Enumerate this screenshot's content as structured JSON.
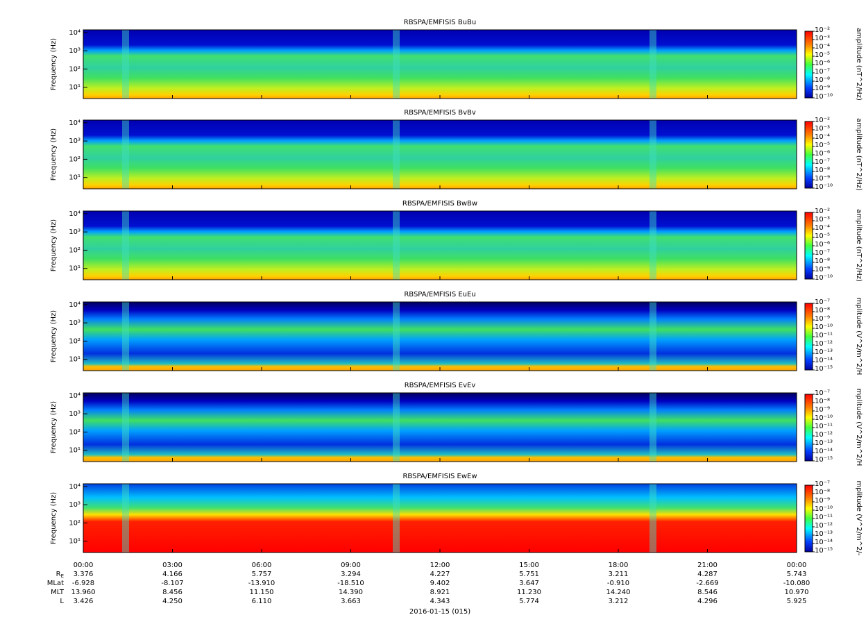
{
  "chart_data": [
    {
      "type": "spectrogram",
      "title": "RBSPA/EMFISIS  BuBu",
      "ylabel": "Frequency (Hz)",
      "ylog": true,
      "ylim": [
        2.4,
        14000
      ],
      "yticks": [
        {
          "value": 10,
          "label": "10¹"
        },
        {
          "value": 100,
          "label": "10²"
        },
        {
          "value": 1000,
          "label": "10³"
        },
        {
          "value": 10000,
          "label": "10⁴"
        }
      ],
      "clabel": "amplitude (nT^2/Hz)",
      "clog": true,
      "clim": [
        1e-10,
        0.01
      ],
      "cticks": [
        {
          "value": 0.01,
          "label": "10⁻²"
        },
        {
          "value": 0.001,
          "label": "10⁻³"
        },
        {
          "value": 0.0001,
          "label": "10⁻⁴"
        },
        {
          "value": 1e-05,
          "label": "10⁻⁵"
        },
        {
          "value": 1e-06,
          "label": "10⁻⁶"
        },
        {
          "value": 1e-07,
          "label": "10⁻⁷"
        },
        {
          "value": 1e-08,
          "label": "10⁻⁸"
        },
        {
          "value": 1e-09,
          "label": "10⁻⁹"
        },
        {
          "value": 1e-10,
          "label": "10⁻¹⁰"
        }
      ]
    },
    {
      "type": "spectrogram",
      "title": "RBSPA/EMFISIS  BvBv",
      "ylabel": "Frequency (Hz)",
      "ylog": true,
      "ylim": [
        2.4,
        14000
      ],
      "yticks": [
        {
          "value": 10,
          "label": "10¹"
        },
        {
          "value": 100,
          "label": "10²"
        },
        {
          "value": 1000,
          "label": "10³"
        },
        {
          "value": 10000,
          "label": "10⁴"
        }
      ],
      "clabel": "amplitude (nT^2/Hz)",
      "clog": true,
      "clim": [
        1e-10,
        0.01
      ],
      "cticks": [
        {
          "value": 0.01,
          "label": "10⁻²"
        },
        {
          "value": 0.001,
          "label": "10⁻³"
        },
        {
          "value": 0.0001,
          "label": "10⁻⁴"
        },
        {
          "value": 1e-05,
          "label": "10⁻⁵"
        },
        {
          "value": 1e-06,
          "label": "10⁻⁶"
        },
        {
          "value": 1e-07,
          "label": "10⁻⁷"
        },
        {
          "value": 1e-08,
          "label": "10⁻⁸"
        },
        {
          "value": 1e-09,
          "label": "10⁻⁹"
        },
        {
          "value": 1e-10,
          "label": "10⁻¹⁰"
        }
      ]
    },
    {
      "type": "spectrogram",
      "title": "RBSPA/EMFISIS  BwBw",
      "ylabel": "Frequency (Hz)",
      "ylog": true,
      "ylim": [
        2.4,
        14000
      ],
      "yticks": [
        {
          "value": 10,
          "label": "10¹"
        },
        {
          "value": 100,
          "label": "10²"
        },
        {
          "value": 1000,
          "label": "10³"
        },
        {
          "value": 10000,
          "label": "10⁴"
        }
      ],
      "clabel": "amplitude (nT^2/Hz)",
      "clog": true,
      "clim": [
        1e-10,
        0.01
      ],
      "cticks": [
        {
          "value": 0.01,
          "label": "10⁻²"
        },
        {
          "value": 0.001,
          "label": "10⁻³"
        },
        {
          "value": 0.0001,
          "label": "10⁻⁴"
        },
        {
          "value": 1e-05,
          "label": "10⁻⁵"
        },
        {
          "value": 1e-06,
          "label": "10⁻⁶"
        },
        {
          "value": 1e-07,
          "label": "10⁻⁷"
        },
        {
          "value": 1e-08,
          "label": "10⁻⁸"
        },
        {
          "value": 1e-09,
          "label": "10⁻⁹"
        },
        {
          "value": 1e-10,
          "label": "10⁻¹⁰"
        }
      ]
    },
    {
      "type": "spectrogram",
      "title": "RBSPA/EMFISIS  EuEu",
      "ylabel": "Frequency (Hz)",
      "ylog": true,
      "ylim": [
        2.4,
        14000
      ],
      "yticks": [
        {
          "value": 10,
          "label": "10¹"
        },
        {
          "value": 100,
          "label": "10²"
        },
        {
          "value": 1000,
          "label": "10³"
        },
        {
          "value": 10000,
          "label": "10⁴"
        }
      ],
      "clabel": "mplitude (V^2/m^2/H",
      "clog": true,
      "clim": [
        1e-15,
        1e-07
      ],
      "cticks": [
        {
          "value": 1e-07,
          "label": "10⁻⁷"
        },
        {
          "value": 1e-08,
          "label": "10⁻⁸"
        },
        {
          "value": 1e-09,
          "label": "10⁻⁹"
        },
        {
          "value": 1e-10,
          "label": "10⁻¹⁰"
        },
        {
          "value": 1e-11,
          "label": "10⁻¹¹"
        },
        {
          "value": 1e-12,
          "label": "10⁻¹²"
        },
        {
          "value": 1e-13,
          "label": "10⁻¹³"
        },
        {
          "value": 1e-14,
          "label": "10⁻¹⁴"
        },
        {
          "value": 1e-15,
          "label": "10⁻¹⁵"
        }
      ]
    },
    {
      "type": "spectrogram",
      "title": "RBSPA/EMFISIS  EvEv",
      "ylabel": "Frequency (Hz)",
      "ylog": true,
      "ylim": [
        2.4,
        14000
      ],
      "yticks": [
        {
          "value": 10,
          "label": "10¹"
        },
        {
          "value": 100,
          "label": "10²"
        },
        {
          "value": 1000,
          "label": "10³"
        },
        {
          "value": 10000,
          "label": "10⁴"
        }
      ],
      "clabel": "mplitude (V^2/m^2/H",
      "clog": true,
      "clim": [
        1e-15,
        1e-07
      ],
      "cticks": [
        {
          "value": 1e-07,
          "label": "10⁻⁷"
        },
        {
          "value": 1e-08,
          "label": "10⁻⁸"
        },
        {
          "value": 1e-09,
          "label": "10⁻⁹"
        },
        {
          "value": 1e-10,
          "label": "10⁻¹⁰"
        },
        {
          "value": 1e-11,
          "label": "10⁻¹¹"
        },
        {
          "value": 1e-12,
          "label": "10⁻¹²"
        },
        {
          "value": 1e-13,
          "label": "10⁻¹³"
        },
        {
          "value": 1e-14,
          "label": "10⁻¹⁴"
        },
        {
          "value": 1e-15,
          "label": "10⁻¹⁵"
        }
      ]
    },
    {
      "type": "spectrogram",
      "title": "RBSPA/EMFISIS  EwEw",
      "ylabel": "Frequency (Hz)",
      "ylog": true,
      "ylim": [
        2.4,
        14000
      ],
      "yticks": [
        {
          "value": 10,
          "label": "10¹"
        },
        {
          "value": 100,
          "label": "10²"
        },
        {
          "value": 1000,
          "label": "10³"
        },
        {
          "value": 10000,
          "label": "10⁴"
        }
      ],
      "clabel": "mplitude (V^2/m^2/-",
      "clog": true,
      "clim": [
        1e-15,
        1e-07
      ],
      "cticks": [
        {
          "value": 1e-07,
          "label": "10⁻⁷"
        },
        {
          "value": 1e-08,
          "label": "10⁻⁸"
        },
        {
          "value": 1e-09,
          "label": "10⁻⁹"
        },
        {
          "value": 1e-10,
          "label": "10⁻¹⁰"
        },
        {
          "value": 1e-11,
          "label": "10⁻¹¹"
        },
        {
          "value": 1e-12,
          "label": "10⁻¹²"
        },
        {
          "value": 1e-13,
          "label": "10⁻¹³"
        },
        {
          "value": 1e-14,
          "label": "10⁻¹⁴"
        },
        {
          "value": 1e-15,
          "label": "10⁻¹⁵"
        }
      ]
    }
  ],
  "xlim": [
    0,
    24
  ],
  "xticks": [
    {
      "value": 0,
      "label": "00:00"
    },
    {
      "value": 3,
      "label": "03:00"
    },
    {
      "value": 6,
      "label": "06:00"
    },
    {
      "value": 9,
      "label": "09:00"
    },
    {
      "value": 12,
      "label": "12:00"
    },
    {
      "value": 15,
      "label": "15:00"
    },
    {
      "value": 18,
      "label": "18:00"
    },
    {
      "value": 21,
      "label": "21:00"
    },
    {
      "value": 24,
      "label": "00:00"
    }
  ],
  "ephemeris": [
    {
      "label": "R",
      "sub": "E",
      "values": [
        "3.376",
        "4.166",
        "5.757",
        "3.294",
        "4.227",
        "5.751",
        "3.211",
        "4.287",
        "5.743"
      ]
    },
    {
      "label": "MLat",
      "values": [
        "-6.928",
        "-8.107",
        "-13.910",
        "-18.510",
        "9.402",
        "3.647",
        "-0.910",
        "-2.669",
        "-10.080"
      ]
    },
    {
      "label": "MLT",
      "values": [
        "13.960",
        "8.456",
        "11.150",
        "14.390",
        "8.921",
        "11.230",
        "14.240",
        "8.546",
        "10.970"
      ]
    },
    {
      "label": "L",
      "values": [
        "3.426",
        "4.250",
        "6.110",
        "3.663",
        "4.343",
        "5.774",
        "3.212",
        "4.296",
        "5.925"
      ]
    }
  ],
  "date": "2016-01-15 (015)"
}
